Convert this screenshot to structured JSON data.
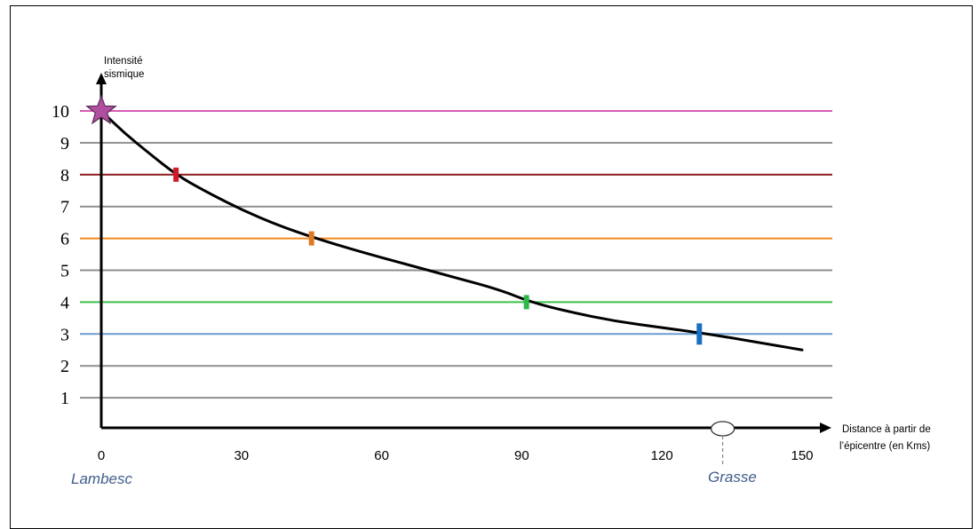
{
  "chart_data": {
    "type": "line",
    "ylabel_lines": [
      "Intensité",
      "sismique"
    ],
    "xlabel_lines": [
      "Distance à partir de",
      "l’épicentre (en Kms)"
    ],
    "y_ticks": [
      "1",
      "2",
      "3",
      "4",
      "5",
      "6",
      "7",
      "8",
      "9",
      "10"
    ],
    "x_ticks": [
      "0",
      "30",
      "60",
      "90",
      "120",
      "150"
    ],
    "xlim": [
      0,
      158
    ],
    "ylim": [
      0,
      10
    ],
    "grid": true,
    "threshold_lines": [
      {
        "y": 10,
        "color": "#d65ab3"
      },
      {
        "y": 9,
        "color": "#8f8f8f"
      },
      {
        "y": 8,
        "color": "#8b1a1a"
      },
      {
        "y": 7,
        "color": "#8f8f8f"
      },
      {
        "y": 6,
        "color": "#f08a1c"
      },
      {
        "y": 5,
        "color": "#8f8f8f"
      },
      {
        "y": 4,
        "color": "#3cc24a"
      },
      {
        "y": 3,
        "color": "#6a9ed0"
      },
      {
        "y": 2,
        "color": "#8f8f8f"
      },
      {
        "y": 1,
        "color": "#8f8f8f"
      }
    ],
    "series": [
      {
        "color": "#000000",
        "x": [
          0,
          5,
          10,
          16,
          22,
          30,
          38,
          46,
          55,
          65,
          75,
          85,
          92,
          100,
          110,
          120,
          130,
          140,
          150
        ],
        "y": [
          10,
          9.3,
          8.7,
          8.0,
          7.5,
          6.9,
          6.4,
          6.0,
          5.6,
          5.2,
          4.8,
          4.4,
          4.0,
          3.7,
          3.4,
          3.2,
          3.0,
          2.75,
          2.5
        ]
      }
    ],
    "markers": [
      {
        "x": 16,
        "y": 8,
        "color": "#d01a2a",
        "shape": "tick"
      },
      {
        "x": 45,
        "y": 6,
        "color": "#e07a22",
        "shape": "tick"
      },
      {
        "x": 91,
        "y": 4,
        "color": "#2db84a",
        "shape": "tick"
      },
      {
        "x": 128,
        "y": 3,
        "color": "#1a6fc4",
        "shape": "tick"
      },
      {
        "x": 0,
        "y": 10,
        "color": "#b04fa0",
        "shape": "star"
      }
    ],
    "annotations": [
      {
        "text": "Lambesc",
        "x": 0
      },
      {
        "text": "Grasse",
        "x": 133
      }
    ],
    "grasse_marker_x": 133
  }
}
